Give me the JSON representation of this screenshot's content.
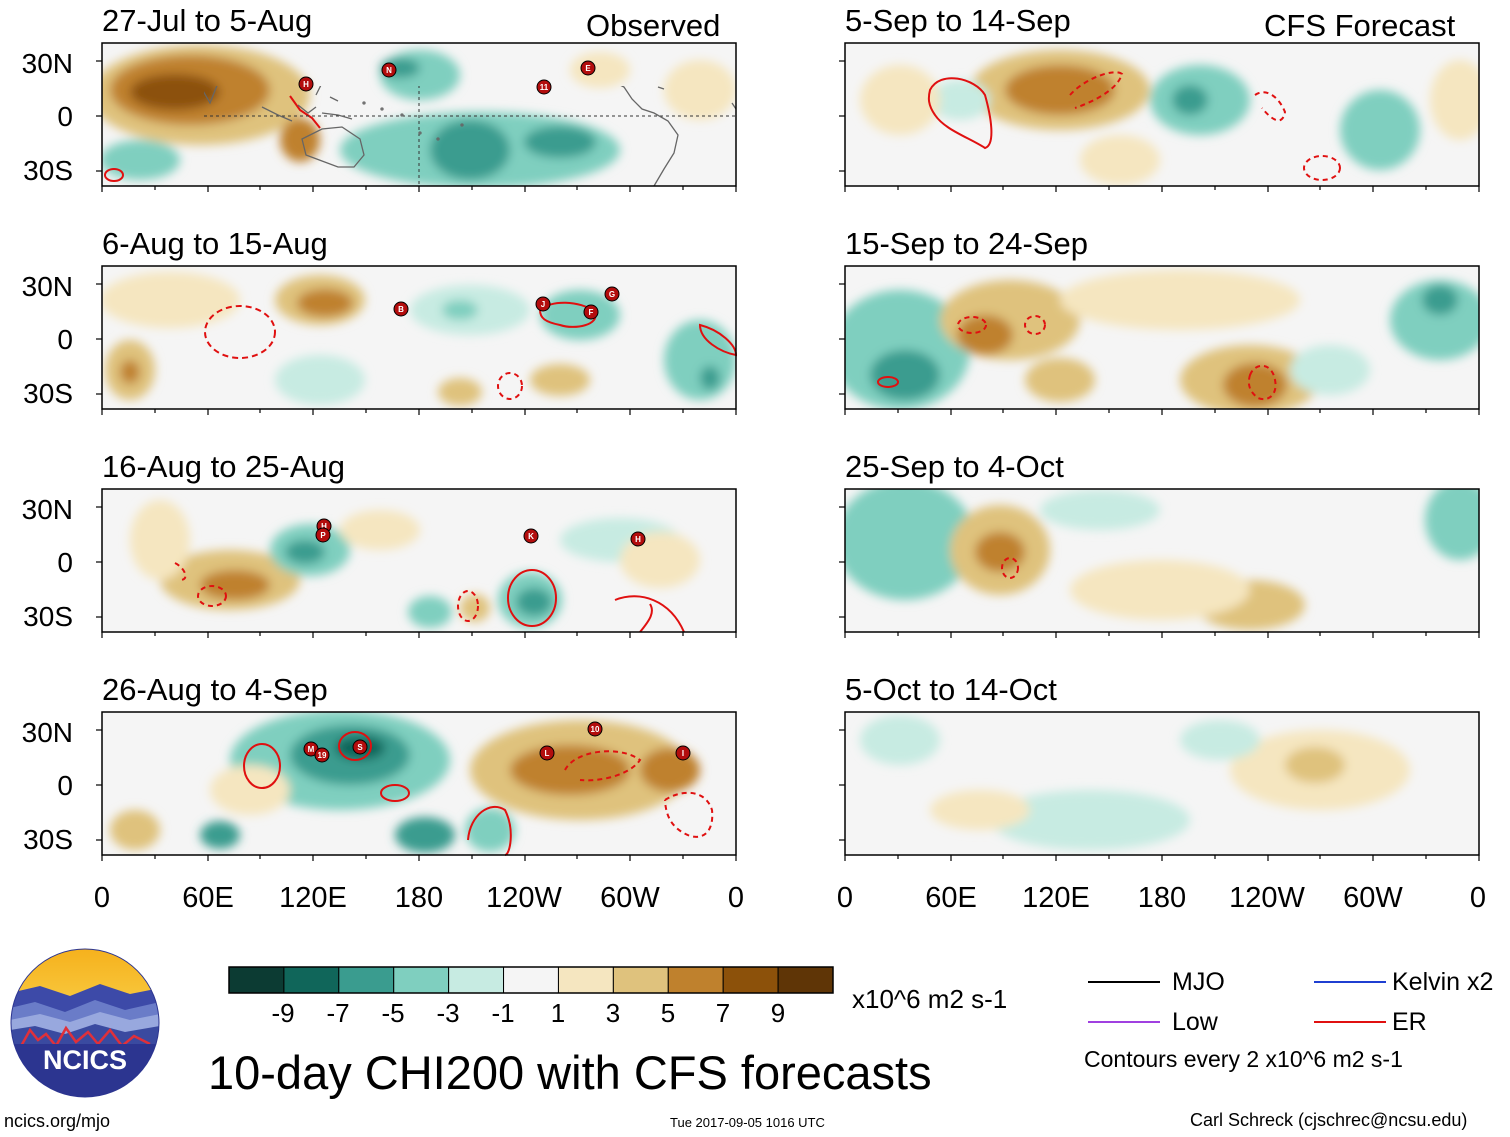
{
  "header": {
    "observed_label": "Observed",
    "forecast_label": "CFS Forecast"
  },
  "panels": [
    {
      "period": "27-Jul to 5-Aug",
      "type": "observed",
      "storms": [
        "H",
        "N",
        "E",
        "11"
      ]
    },
    {
      "period": "6-Aug to 15-Aug",
      "type": "observed",
      "storms": [
        "B",
        "J",
        "G",
        "F"
      ]
    },
    {
      "period": "16-Aug to 25-Aug",
      "type": "observed",
      "storms": [
        "H",
        "P",
        "K",
        "H"
      ]
    },
    {
      "period": "26-Aug to 4-Sep",
      "type": "observed",
      "storms": [
        "M",
        "19",
        "S",
        "L",
        "10",
        "I"
      ]
    },
    {
      "period": "5-Sep to 14-Sep",
      "type": "forecast",
      "storms": []
    },
    {
      "period": "15-Sep to 24-Sep",
      "type": "forecast",
      "storms": []
    },
    {
      "period": "25-Sep to 4-Oct",
      "type": "forecast",
      "storms": []
    },
    {
      "period": "5-Oct to 14-Oct",
      "type": "forecast",
      "storms": []
    }
  ],
  "axes": {
    "lat_labels": [
      "30N",
      "0",
      "30S"
    ],
    "lon_labels": [
      "0",
      "60E",
      "120E",
      "180",
      "120W",
      "60W",
      "0"
    ]
  },
  "colorbar": {
    "colors": [
      "#0c3b33",
      "#10665a",
      "#3a9c8f",
      "#7fcfbf",
      "#c7ebe2",
      "#f5f5f5",
      "#f5e6c0",
      "#dfc27d",
      "#bf812d",
      "#8c510a",
      "#5f3506"
    ],
    "tick_labels": [
      "-9",
      "-7",
      "-5",
      "-3",
      "-1",
      "1",
      "3",
      "5",
      "7",
      "9"
    ],
    "units": "x10^6 m2 s-1"
  },
  "legend": {
    "items": [
      {
        "label": "MJO",
        "color": "#000000"
      },
      {
        "label": "Kelvin x2",
        "color": "#1f3fd1"
      },
      {
        "label": "Low",
        "color": "#a040e0"
      },
      {
        "label": "ER",
        "color": "#e01010"
      }
    ],
    "contour_note": "Contours every 2 x10^6 m2 s-1"
  },
  "footer": {
    "main_title": "10-day CHI200 with CFS forecasts",
    "logo_text": "NCICS",
    "site": "ncics.org/mjo",
    "timestamp": "Tue 2017-09-05 1016 UTC",
    "author": "Carl Schreck (cjschrec@ncsu.edu)"
  }
}
